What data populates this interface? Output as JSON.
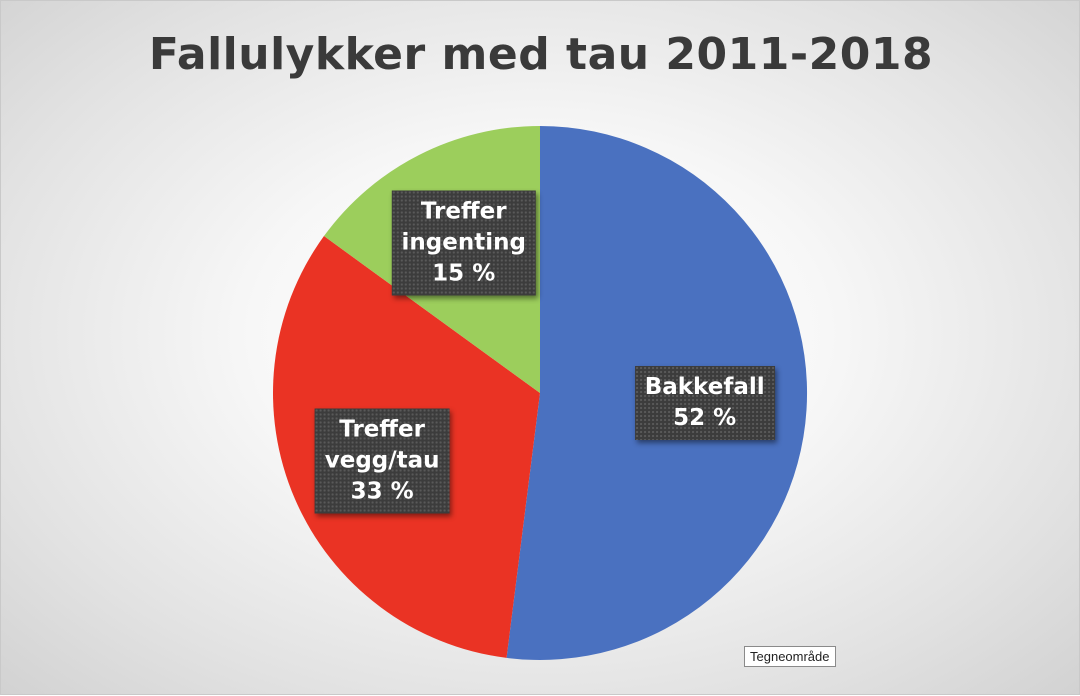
{
  "chart_data": {
    "type": "pie",
    "title": "Fallulykker med tau 2011-2018",
    "slices": [
      {
        "label_lines": [
          "Bakkefall"
        ],
        "value": 52,
        "value_label": "52 %",
        "color": "#4a71c0"
      },
      {
        "label_lines": [
          "Treffer",
          "vegg/tau"
        ],
        "value": 33,
        "value_label": "33 %",
        "color": "#ea3324"
      },
      {
        "label_lines": [
          "Treffer",
          "ingenting"
        ],
        "value": 15,
        "value_label": "15 %",
        "color": "#9cce5c"
      }
    ],
    "legend": "none"
  },
  "tooltip": "Tegneområde"
}
